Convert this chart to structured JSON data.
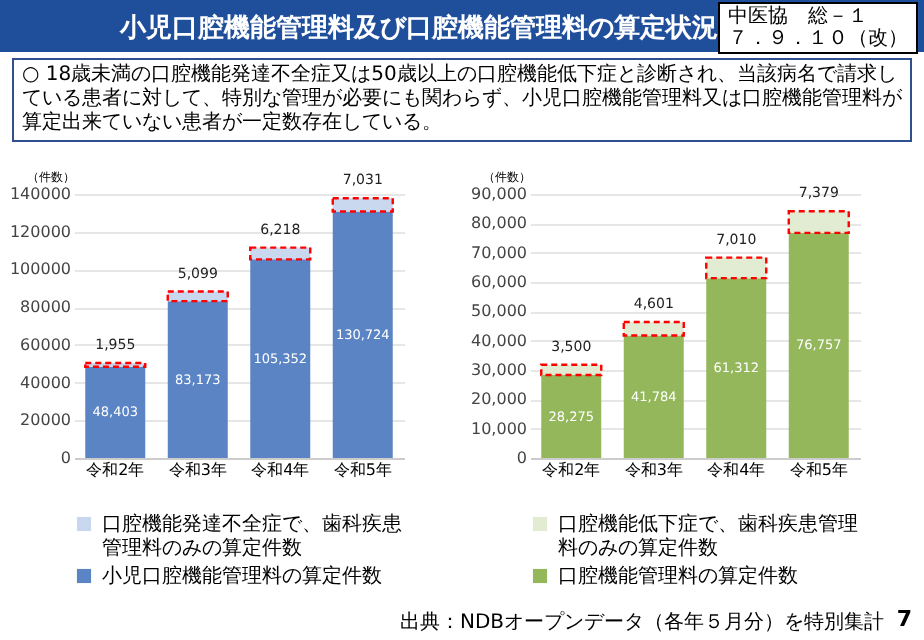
{
  "chart_data": [
    {
      "type": "bar",
      "title": "小児口腔機能管理料及び口腔機能管理料の算定状況",
      "subtitle": "○ 18歳未満の口腔機能発達不全症又は50歳以上の口腔機能低下症と診断され、当該病名で請求している患者に対して、特別な管理が必要にも関わらず、小児口腔機能管理料又は口腔機能管理料が算定出来ていない患者が一定数存在している。",
      "annotations": [
        "中医協　総－１",
        "７．９．１０（改）",
        "7"
      ],
      "ylabel": "（件数）",
      "categories": [
        "令和2年",
        "令和3年",
        "令和4年",
        "令和5年"
      ],
      "stacked": true,
      "grid": "y",
      "legend": "bottom",
      "ylim": [
        0,
        140000
      ],
      "yticks": [
        0,
        20000,
        40000,
        60000,
        80000,
        100000,
        120000,
        140000
      ],
      "series": [
        {
          "name": "小児口腔機能管理料の算定件数",
          "color": "#5b84c4",
          "values": [
            48403,
            83173,
            105352,
            130724
          ],
          "value_labels": [
            "48,403",
            "83,173",
            "105,352",
            "130,724"
          ]
        },
        {
          "name": "口腔機能発達不全症で、歯科疾患管理料のみの算定件数",
          "color": "#c9d8ee",
          "values": [
            1955,
            5099,
            6218,
            7031
          ],
          "value_labels": [
            "1,955",
            "5,099",
            "6,218",
            "7,031"
          ]
        }
      ]
    },
    {
      "type": "bar",
      "annotations": [
        "出典：NDBオープンデータ（各年５月分）を特別集計"
      ],
      "ylabel": "（件数）",
      "categories": [
        "令和2年",
        "令和3年",
        "令和4年",
        "令和5年"
      ],
      "stacked": true,
      "grid": "y",
      "legend": "bottom",
      "ylim": [
        0,
        90000
      ],
      "yticks": [
        0,
        {
          "value": 10000,
          "label": "10,000"
        },
        {
          "value": 20000,
          "label": "20,000"
        },
        {
          "value": 30000,
          "label": "30,000"
        },
        {
          "value": 40000,
          "label": "40,000"
        },
        {
          "value": 50000,
          "label": "50,000"
        },
        {
          "value": 60000,
          "label": "60,000"
        },
        {
          "value": 70000,
          "label": "70,000"
        },
        {
          "value": 80000,
          "label": "80,000"
        },
        {
          "value": 90000,
          "label": "90,000"
        }
      ],
      "series": [
        {
          "name": "口腔機能管理料の算定件数",
          "color": "#93b75a",
          "values": [
            28275,
            41784,
            61312,
            76757
          ],
          "value_labels": [
            "28,275",
            "41,784",
            "61,312",
            "76,757"
          ]
        },
        {
          "name": "口腔機能低下症で、歯科疾患管理料のみの算定件数",
          "color": "#e2ecd2",
          "values": [
            3500,
            4601,
            7010,
            7379
          ],
          "value_labels": [
            "3,500",
            "4,601",
            "7,010",
            "7,379"
          ]
        }
      ]
    }
  ]
}
